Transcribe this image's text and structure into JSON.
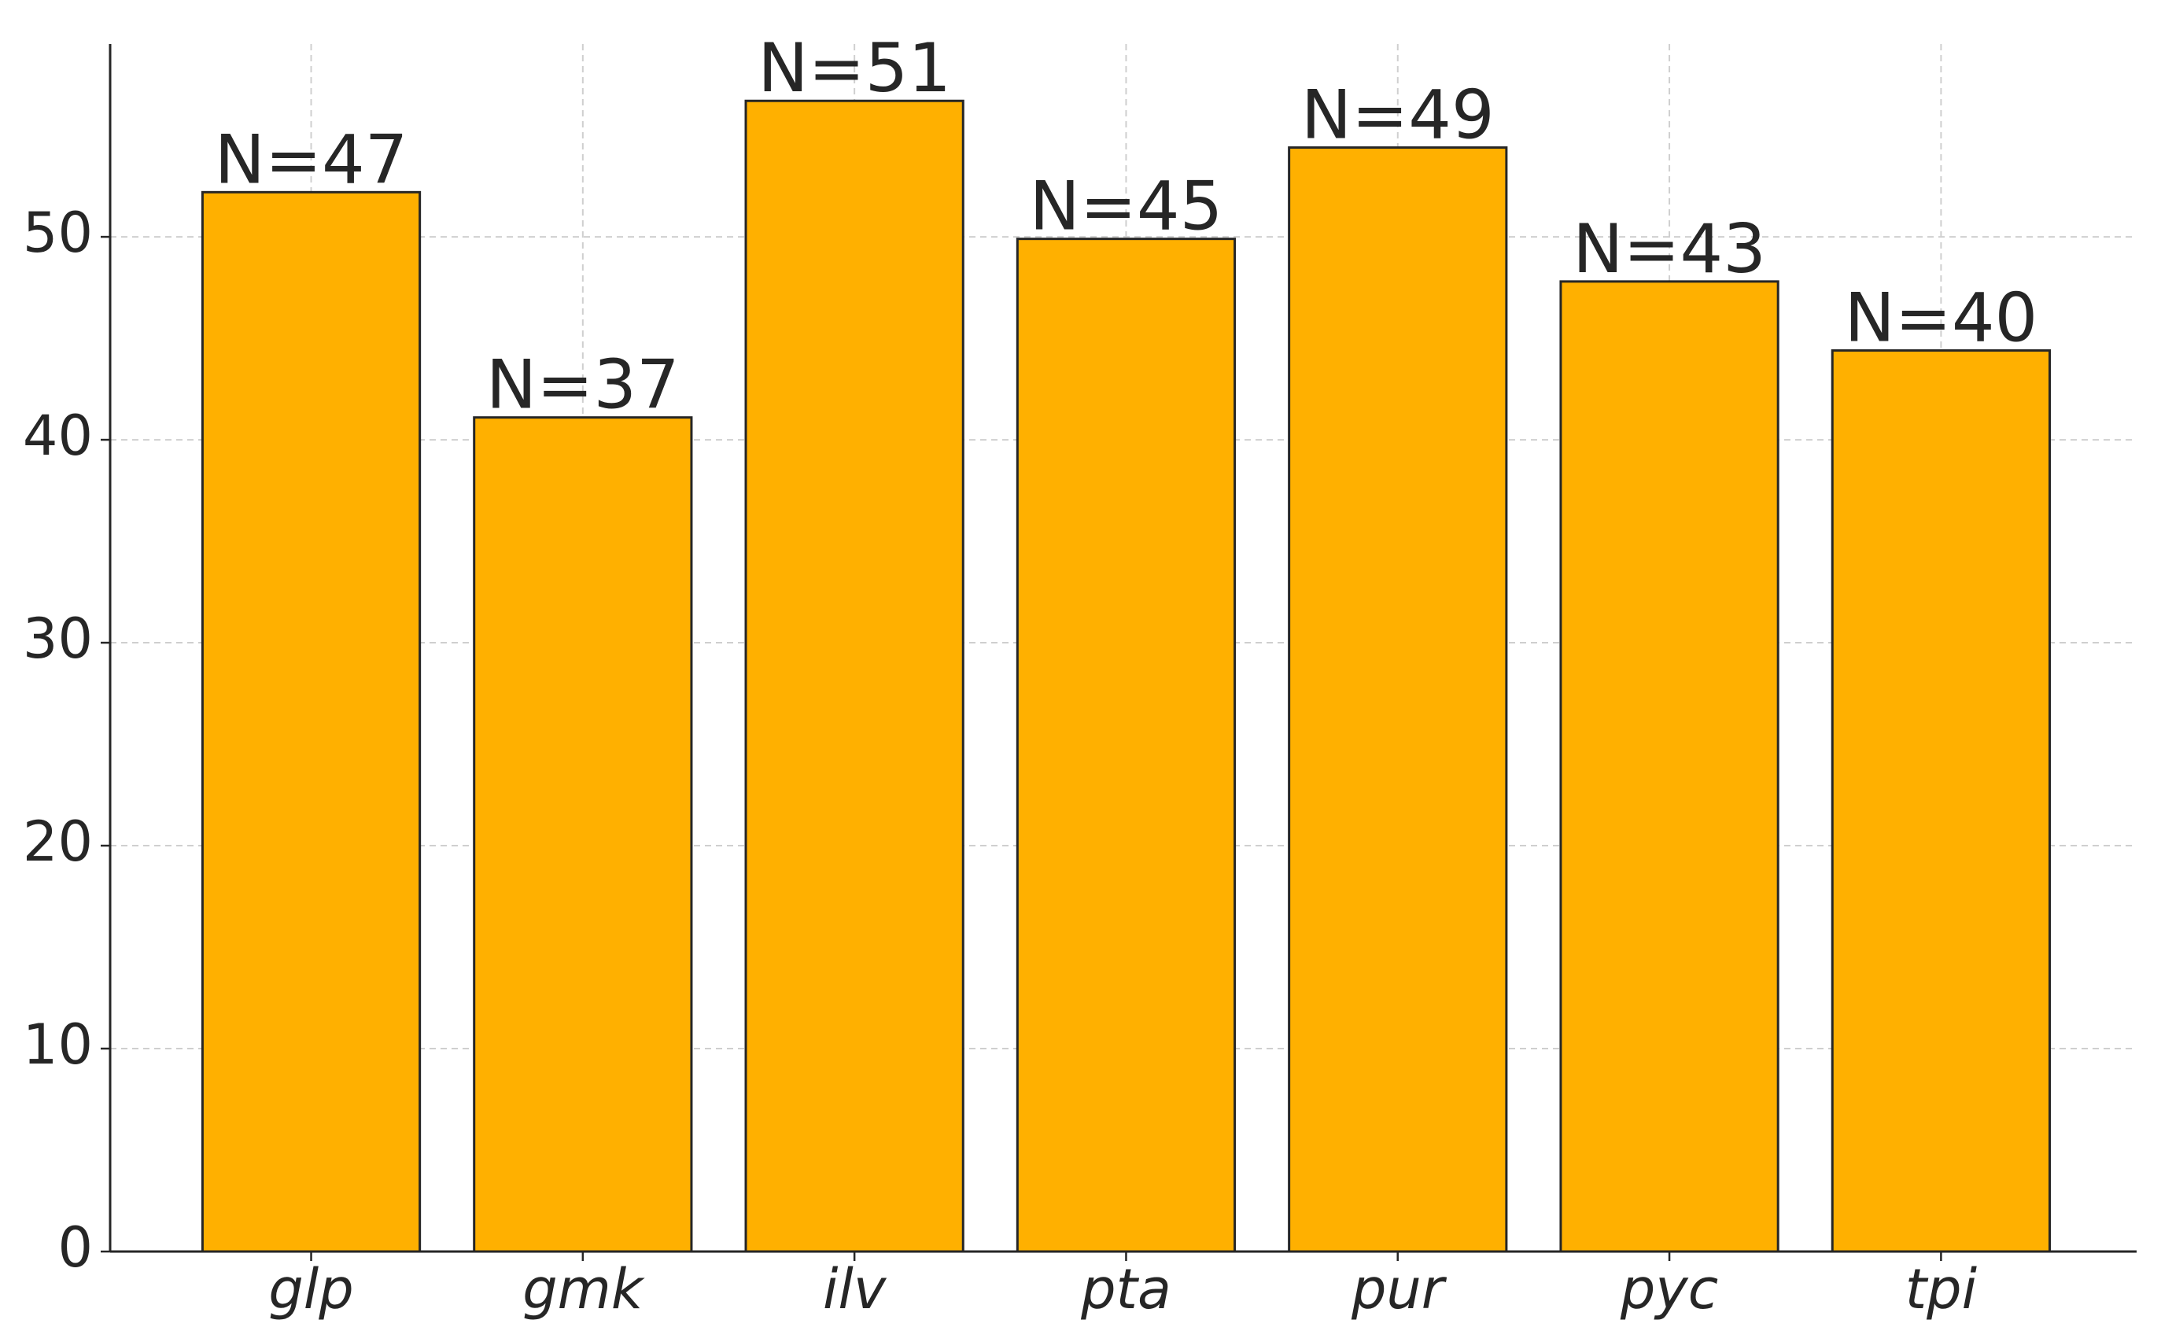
{
  "chart_data": {
    "type": "bar",
    "categories": [
      "glp",
      "gmk",
      "ilv",
      "pta",
      "pur",
      "pyc",
      "tpi"
    ],
    "values": [
      52.2,
      41.1,
      56.7,
      49.9,
      54.4,
      47.8,
      44.4
    ],
    "annotations": [
      "N=47",
      "N=37",
      "N=51",
      "N=45",
      "N=49",
      "N=43",
      "N=40"
    ],
    "color": "#ffb000",
    "ylim": [
      0,
      59.5
    ],
    "yticks": [
      0,
      10,
      20,
      30,
      40,
      50
    ],
    "grid": true
  }
}
